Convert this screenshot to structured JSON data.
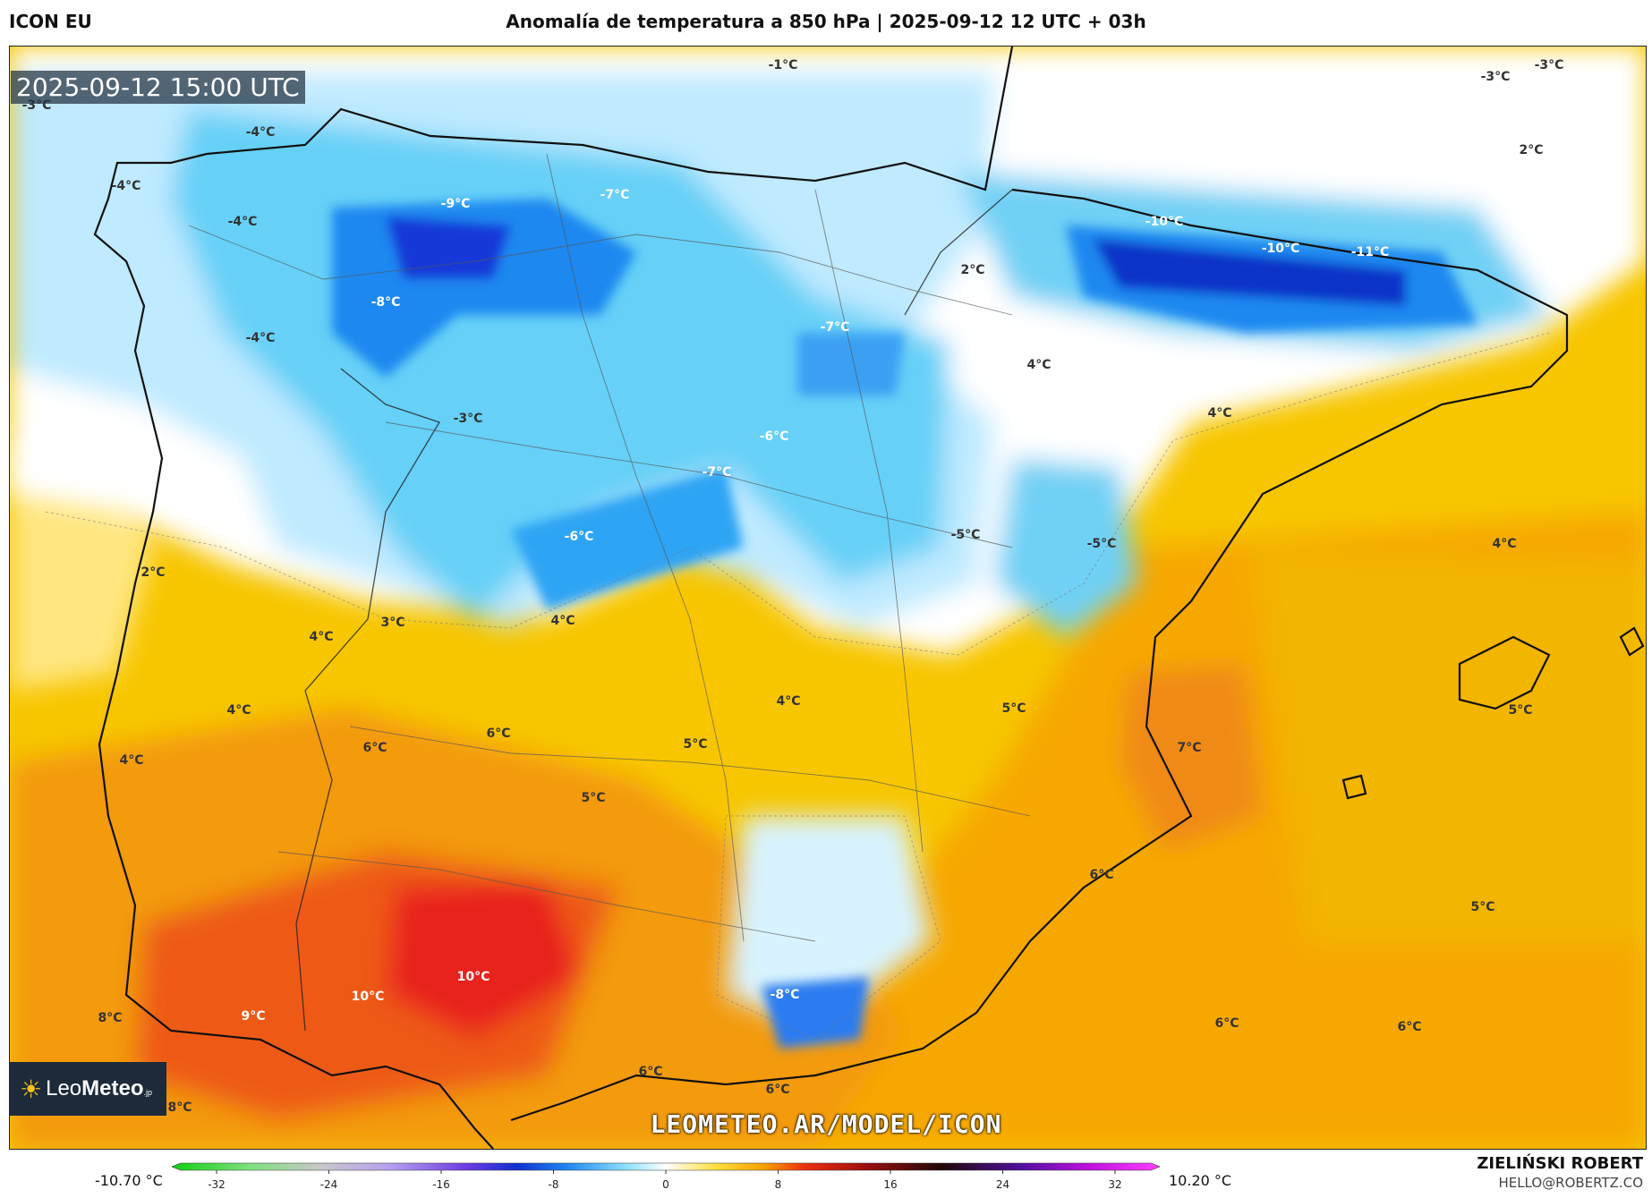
{
  "header": {
    "model": "ICON EU",
    "title": "Anomalía de temperatura a 850 hPa | 2025-09-12 12 UTC + 03h"
  },
  "valid_time": "2025-09-12 15:00 UTC",
  "watermark": "LEOMETEO.AR/MODEL/ICON",
  "logo": {
    "name": "Leo",
    "bold": "Meteo",
    "suffix": ".jp"
  },
  "author": {
    "name": "ZIELIŃSKI ROBERT",
    "email": "HELLO@ROBERTZ.CO"
  },
  "colorbar": {
    "min_label": "-10.70 °C",
    "max_label": "10.20 °C",
    "ticks": [
      "-32",
      "-24",
      "-16",
      "-8",
      "0",
      "8",
      "16",
      "24",
      "32"
    ]
  },
  "map_labels": [
    {
      "t": "-1°C"
    },
    {
      "t": "-3°C"
    },
    {
      "t": "-3°C"
    },
    {
      "t": "-3°C"
    },
    {
      "t": "-4°C"
    },
    {
      "t": "-4°C"
    },
    {
      "t": "-4°C"
    },
    {
      "t": "-4°C"
    },
    {
      "t": "-9°C"
    },
    {
      "t": "-7°C"
    },
    {
      "t": "-8°C"
    },
    {
      "t": "-7°C"
    },
    {
      "t": "-3°C"
    },
    {
      "t": "-6°C"
    },
    {
      "t": "-7°C"
    },
    {
      "t": "-6°C"
    },
    {
      "t": "-5°C"
    },
    {
      "t": "-5°C"
    },
    {
      "t": "-10°C"
    },
    {
      "t": "-10°C"
    },
    {
      "t": "-11°C"
    },
    {
      "t": "2°C"
    },
    {
      "t": "2°C"
    },
    {
      "t": "4°C"
    },
    {
      "t": "4°C"
    },
    {
      "t": "4°C"
    },
    {
      "t": "2°C"
    },
    {
      "t": "3°C"
    },
    {
      "t": "4°C"
    },
    {
      "t": "4°C"
    },
    {
      "t": "4°C"
    },
    {
      "t": "4°C"
    },
    {
      "t": "5°C"
    },
    {
      "t": "4°C"
    },
    {
      "t": "6°C"
    },
    {
      "t": "6°C"
    },
    {
      "t": "5°C"
    },
    {
      "t": "5°C"
    },
    {
      "t": "7°C"
    },
    {
      "t": "5°C"
    },
    {
      "t": "6°C"
    },
    {
      "t": "5°C"
    },
    {
      "t": "10°C"
    },
    {
      "t": "10°C"
    },
    {
      "t": "9°C"
    },
    {
      "t": "8°C"
    },
    {
      "t": "-8°C"
    },
    {
      "t": "6°C"
    },
    {
      "t": "6°C"
    },
    {
      "t": "6°C"
    },
    {
      "t": "6°C"
    },
    {
      "t": "8°C"
    }
  ]
}
